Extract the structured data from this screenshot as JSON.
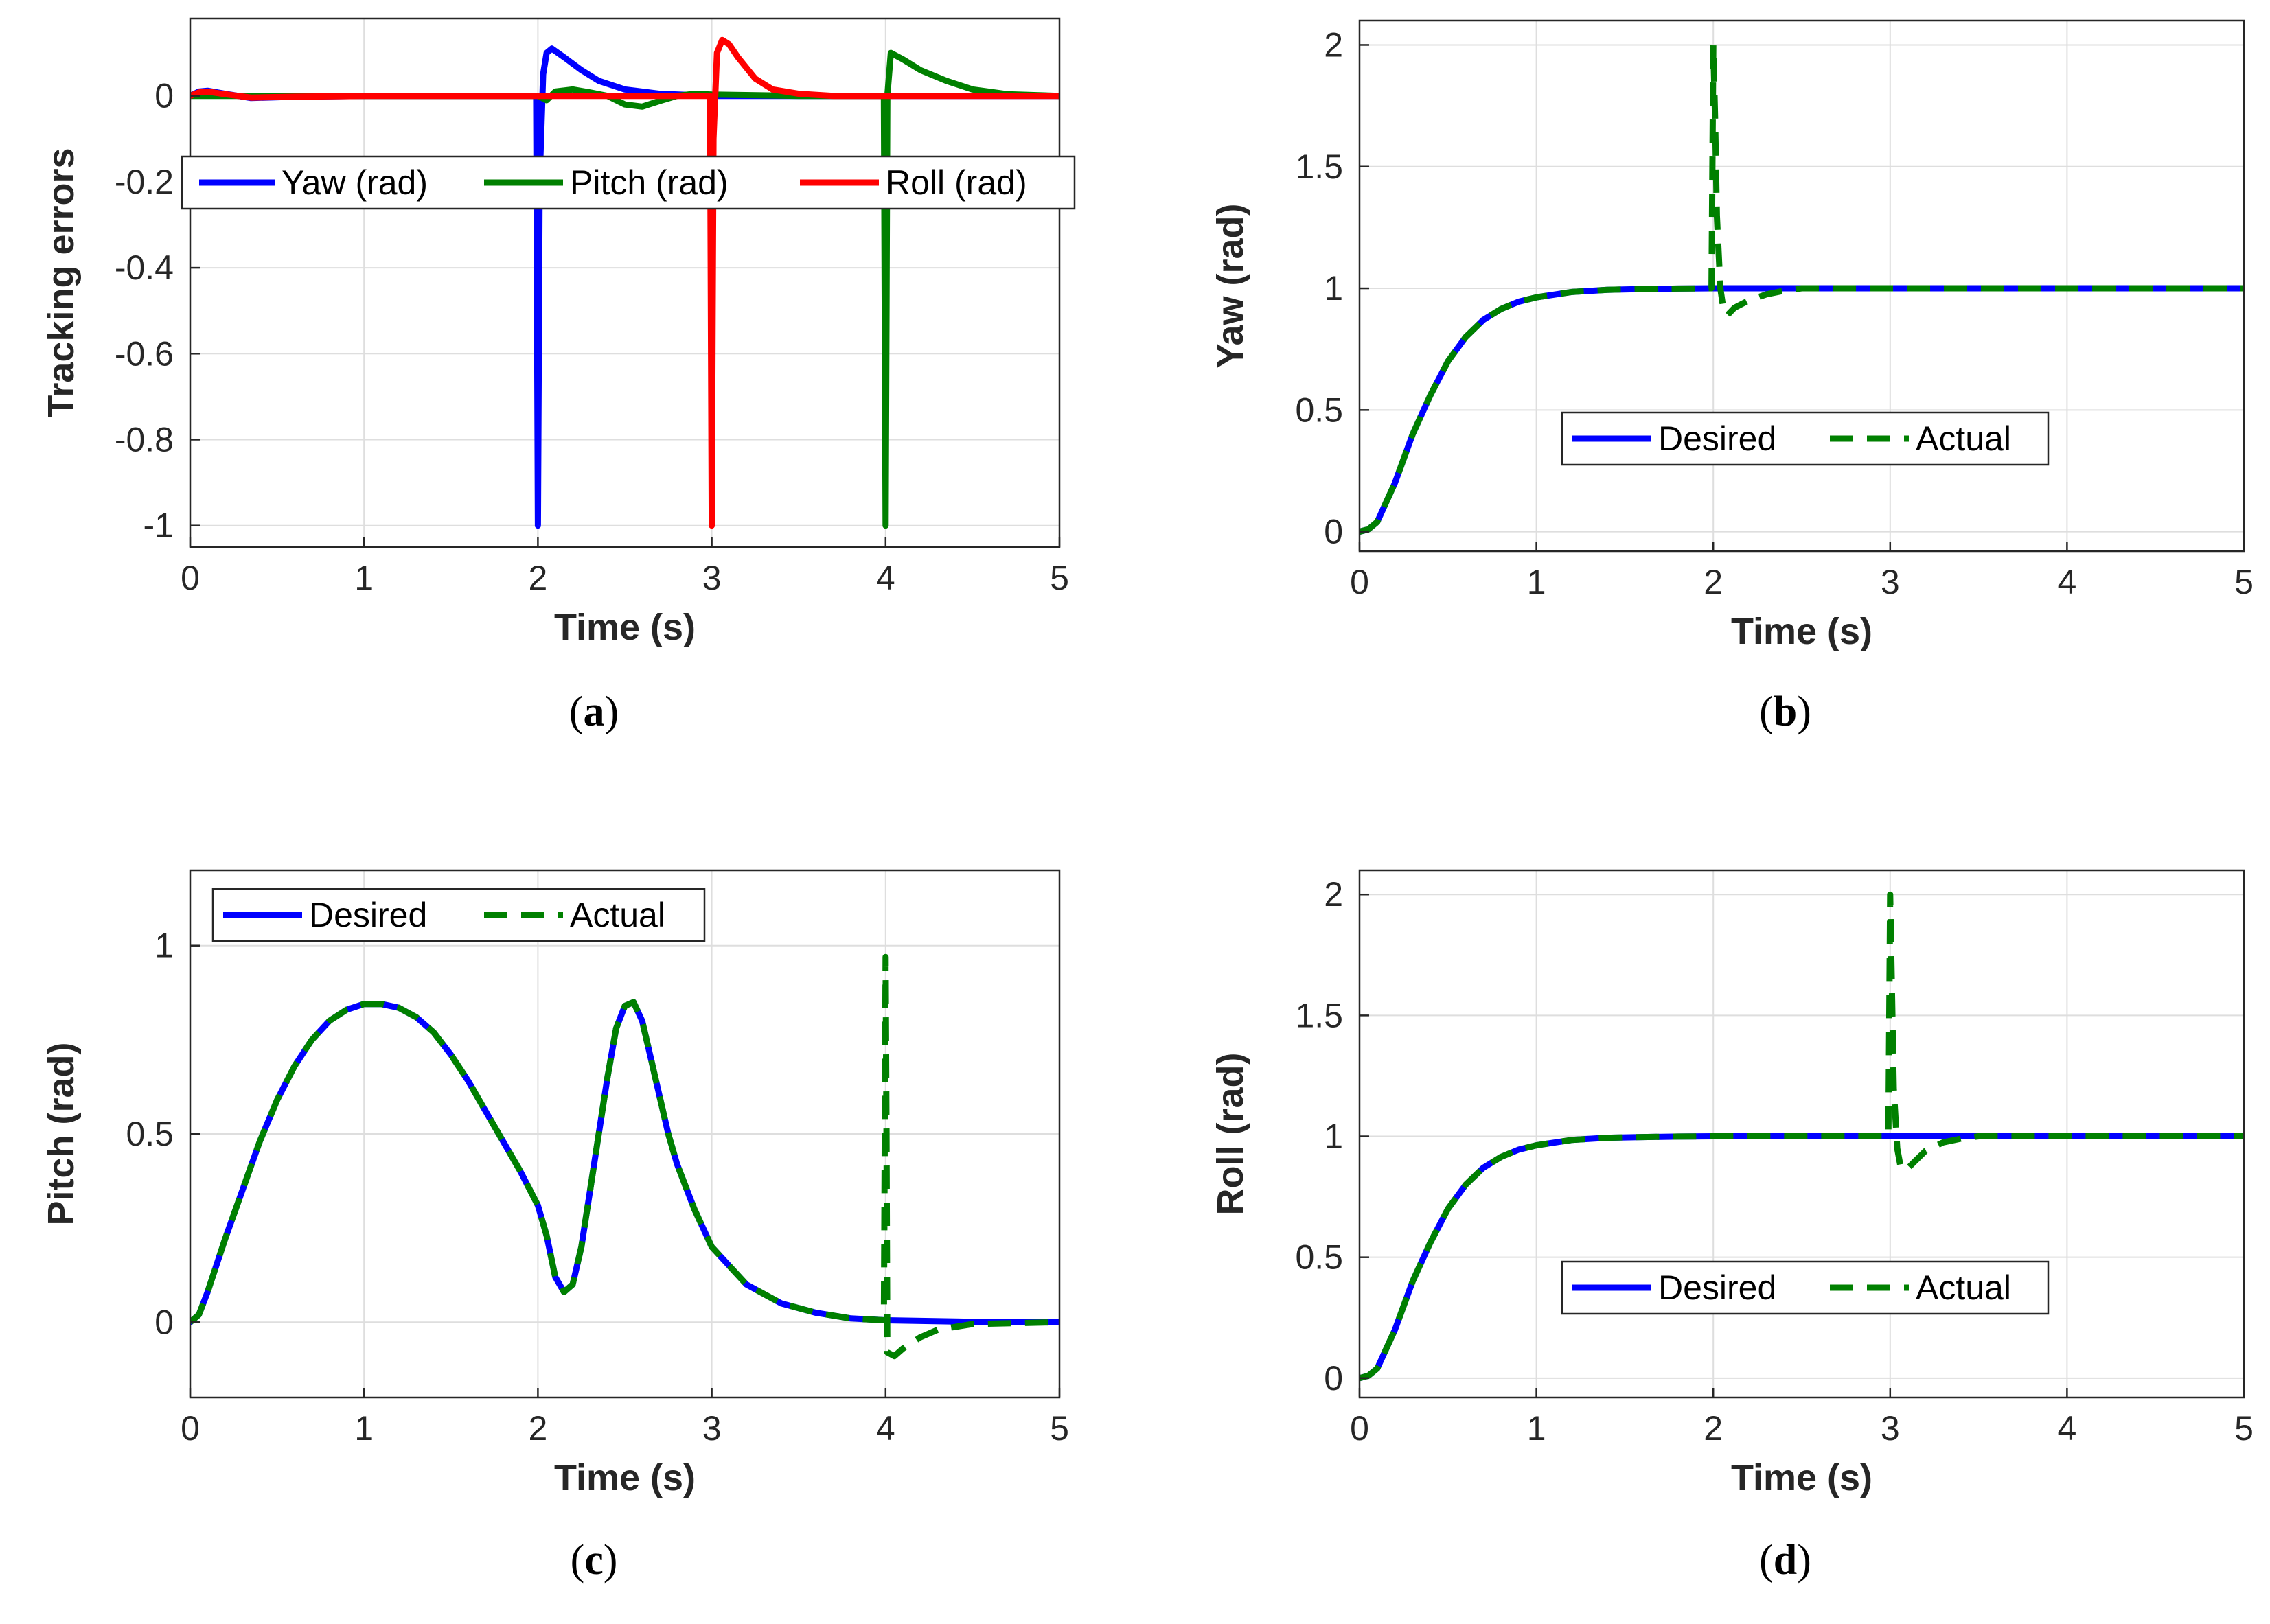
{
  "chart_data": [
    {
      "type": "line",
      "id": "a",
      "caption": "(a)",
      "caption_letter": "a",
      "xlabel": "Time (s)",
      "ylabel": "Tracking errors",
      "xlim": [
        0,
        5
      ],
      "ylim": [
        -1.05,
        0.18
      ],
      "xticks": [
        0,
        1,
        2,
        3,
        4,
        5
      ],
      "xtick_labels": [
        "0",
        "1",
        "2",
        "3",
        "4",
        "5"
      ],
      "yticks": [
        -1,
        -0.8,
        -0.6,
        -0.4,
        -0.2,
        0
      ],
      "ytick_labels": [
        "-1",
        "-0.8",
        "-0.6",
        "-0.4",
        "-0.2",
        "0"
      ],
      "grid": true,
      "legend": {
        "placement": "top, horizontal",
        "entries": [
          "Yaw (rad)",
          "Pitch (rad)",
          "Roll (rad)"
        ]
      },
      "series": [
        {
          "name": "Yaw (rad)",
          "color": "#0000ff",
          "style": "solid",
          "x": [
            0,
            0.05,
            0.1,
            0.2,
            0.35,
            0.6,
            1.0,
            1.5,
            1.99,
            2.0,
            2.005,
            2.01,
            2.03,
            2.05,
            2.08,
            2.15,
            2.25,
            2.35,
            2.5,
            2.7,
            3.0,
            3.5,
            4.0,
            4.5,
            5.0
          ],
          "y": [
            0,
            0.01,
            0.012,
            0.005,
            -0.005,
            -0.002,
            0,
            0,
            0,
            -1.0,
            -0.6,
            -0.2,
            0.05,
            0.1,
            0.11,
            0.09,
            0.06,
            0.035,
            0.015,
            0.005,
            0,
            0,
            0,
            0,
            0
          ]
        },
        {
          "name": "Pitch (rad)",
          "color": "#008000",
          "style": "solid",
          "x": [
            0,
            0.2,
            0.5,
            1.0,
            1.5,
            2.0,
            2.05,
            2.1,
            2.2,
            2.3,
            2.4,
            2.5,
            2.6,
            2.7,
            2.8,
            2.9,
            3.0,
            3.5,
            3.99,
            4.0,
            4.005,
            4.01,
            4.03,
            4.1,
            4.2,
            4.35,
            4.5,
            4.7,
            5.0
          ],
          "y": [
            0,
            0,
            0,
            0,
            0,
            0,
            -0.01,
            0.01,
            0.015,
            0.008,
            0.0,
            -0.02,
            -0.025,
            -0.012,
            0.0,
            0.005,
            0.003,
            0,
            0,
            -1.0,
            -0.5,
            0.0,
            0.1,
            0.085,
            0.06,
            0.035,
            0.015,
            0.004,
            0
          ]
        },
        {
          "name": "Roll (rad)",
          "color": "#ff0000",
          "style": "solid",
          "x": [
            0,
            0.05,
            0.1,
            0.2,
            0.35,
            0.6,
            1.0,
            2.0,
            2.99,
            3.0,
            3.005,
            3.01,
            3.03,
            3.06,
            3.1,
            3.15,
            3.25,
            3.35,
            3.5,
            3.7,
            4.0,
            5.0
          ],
          "y": [
            0,
            0.008,
            0.01,
            0.004,
            -0.004,
            -0.002,
            0,
            0,
            0,
            -1.0,
            -0.5,
            -0.1,
            0.1,
            0.13,
            0.12,
            0.09,
            0.04,
            0.015,
            0.005,
            0,
            0,
            0
          ]
        }
      ]
    },
    {
      "type": "line",
      "id": "b",
      "caption": "(b)",
      "caption_letter": "b",
      "xlabel": "Time (s)",
      "ylabel": "Yaw (rad)",
      "xlim": [
        0,
        5
      ],
      "ylim": [
        -0.08,
        2.1
      ],
      "xticks": [
        0,
        1,
        2,
        3,
        4,
        5
      ],
      "xtick_labels": [
        "0",
        "1",
        "2",
        "3",
        "4",
        "5"
      ],
      "yticks": [
        0,
        0.5,
        1,
        1.5,
        2
      ],
      "ytick_labels": [
        "0",
        "0.5",
        "1",
        "1.5",
        "2"
      ],
      "grid": true,
      "legend": {
        "placement": "center-bottom, horizontal",
        "entries": [
          "Desired",
          "Actual"
        ]
      },
      "series": [
        {
          "name": "Desired",
          "color": "#0000ff",
          "style": "solid",
          "x": [
            0,
            0.05,
            0.1,
            0.2,
            0.3,
            0.4,
            0.5,
            0.6,
            0.7,
            0.8,
            0.9,
            1.0,
            1.2,
            1.4,
            1.6,
            1.8,
            2.0,
            2.5,
            3.0,
            3.5,
            4.0,
            4.5,
            5.0
          ],
          "y": [
            0,
            0.01,
            0.04,
            0.2,
            0.4,
            0.56,
            0.7,
            0.8,
            0.87,
            0.915,
            0.945,
            0.963,
            0.985,
            0.994,
            0.997,
            0.999,
            1.0,
            1.0,
            1.0,
            1.0,
            1.0,
            1.0,
            1.0
          ]
        },
        {
          "name": "Actual",
          "color": "#008000",
          "style": "dashed",
          "x": [
            0,
            0.05,
            0.1,
            0.2,
            0.3,
            0.4,
            0.5,
            0.6,
            0.7,
            0.8,
            0.9,
            1.0,
            1.2,
            1.4,
            1.6,
            1.8,
            1.99,
            2.0,
            2.01,
            2.02,
            2.04,
            2.06,
            2.08,
            2.12,
            2.2,
            2.3,
            2.4,
            2.5,
            3.0,
            3.5,
            4.0,
            4.5,
            5.0
          ],
          "y": [
            0,
            0.01,
            0.04,
            0.2,
            0.4,
            0.56,
            0.7,
            0.8,
            0.87,
            0.915,
            0.945,
            0.963,
            0.985,
            0.994,
            0.997,
            0.999,
            1.0,
            2.0,
            1.7,
            1.3,
            1.0,
            0.9,
            0.89,
            0.92,
            0.95,
            0.975,
            0.99,
            1.0,
            1.0,
            1.0,
            1.0,
            1.0,
            1.0
          ]
        }
      ]
    },
    {
      "type": "line",
      "id": "c",
      "caption": "(c)",
      "caption_letter": "c",
      "xlabel": "Time (s)",
      "ylabel": "Pitch (rad)",
      "xlim": [
        0,
        5
      ],
      "ylim": [
        -0.2,
        1.2
      ],
      "xticks": [
        0,
        1,
        2,
        3,
        4,
        5
      ],
      "xtick_labels": [
        "0",
        "1",
        "2",
        "3",
        "4",
        "5"
      ],
      "yticks": [
        0,
        0.5,
        1
      ],
      "ytick_labels": [
        "0",
        "0.5",
        "1"
      ],
      "grid": true,
      "legend": {
        "placement": "top-left, horizontal",
        "entries": [
          "Desired",
          "Actual"
        ]
      },
      "series": [
        {
          "name": "Desired",
          "color": "#0000ff",
          "style": "solid",
          "x": [
            0,
            0.05,
            0.1,
            0.2,
            0.3,
            0.4,
            0.5,
            0.6,
            0.7,
            0.8,
            0.9,
            1.0,
            1.1,
            1.2,
            1.3,
            1.4,
            1.5,
            1.6,
            1.7,
            1.8,
            1.9,
            2.0,
            2.05,
            2.1,
            2.15,
            2.2,
            2.25,
            2.3,
            2.35,
            2.4,
            2.45,
            2.5,
            2.55,
            2.6,
            2.65,
            2.7,
            2.75,
            2.8,
            2.9,
            3.0,
            3.2,
            3.4,
            3.6,
            3.8,
            4.0,
            4.5,
            5.0
          ],
          "y": [
            0,
            0.02,
            0.08,
            0.22,
            0.35,
            0.48,
            0.59,
            0.68,
            0.75,
            0.8,
            0.83,
            0.845,
            0.845,
            0.835,
            0.81,
            0.77,
            0.71,
            0.64,
            0.56,
            0.48,
            0.4,
            0.31,
            0.23,
            0.12,
            0.08,
            0.1,
            0.2,
            0.35,
            0.5,
            0.65,
            0.78,
            0.84,
            0.85,
            0.8,
            0.7,
            0.6,
            0.5,
            0.42,
            0.3,
            0.2,
            0.1,
            0.05,
            0.025,
            0.01,
            0.005,
            0.001,
            0
          ]
        },
        {
          "name": "Actual",
          "color": "#008000",
          "style": "dashed",
          "x": [
            0,
            0.05,
            0.1,
            0.2,
            0.3,
            0.4,
            0.5,
            0.6,
            0.7,
            0.8,
            0.9,
            1.0,
            1.1,
            1.2,
            1.3,
            1.4,
            1.5,
            1.6,
            1.7,
            1.8,
            1.9,
            2.0,
            2.05,
            2.1,
            2.15,
            2.2,
            2.25,
            2.3,
            2.35,
            2.4,
            2.45,
            2.5,
            2.55,
            2.6,
            2.65,
            2.7,
            2.75,
            2.8,
            2.9,
            3.0,
            3.2,
            3.4,
            3.6,
            3.8,
            3.99,
            4.0,
            4.005,
            4.01,
            4.05,
            4.1,
            4.2,
            4.3,
            4.5,
            5.0
          ],
          "y": [
            0,
            0.02,
            0.08,
            0.22,
            0.35,
            0.48,
            0.59,
            0.68,
            0.75,
            0.8,
            0.83,
            0.845,
            0.845,
            0.835,
            0.81,
            0.77,
            0.71,
            0.64,
            0.56,
            0.48,
            0.4,
            0.31,
            0.23,
            0.12,
            0.08,
            0.1,
            0.2,
            0.35,
            0.5,
            0.65,
            0.78,
            0.84,
            0.85,
            0.8,
            0.7,
            0.6,
            0.5,
            0.42,
            0.3,
            0.2,
            0.1,
            0.05,
            0.025,
            0.01,
            0.005,
            0.97,
            0.5,
            -0.08,
            -0.09,
            -0.07,
            -0.04,
            -0.02,
            -0.005,
            0
          ]
        }
      ]
    },
    {
      "type": "line",
      "id": "d",
      "caption": "(d)",
      "caption_letter": "d",
      "xlabel": "Time (s)",
      "ylabel": "Roll (rad)",
      "xlim": [
        0,
        5
      ],
      "ylim": [
        -0.08,
        2.1
      ],
      "xticks": [
        0,
        1,
        2,
        3,
        4,
        5
      ],
      "xtick_labels": [
        "0",
        "1",
        "2",
        "3",
        "4",
        "5"
      ],
      "yticks": [
        0,
        0.5,
        1,
        1.5,
        2
      ],
      "ytick_labels": [
        "0",
        "0.5",
        "1",
        "1.5",
        "2"
      ],
      "grid": true,
      "legend": {
        "placement": "center-bottom, horizontal",
        "entries": [
          "Desired",
          "Actual"
        ]
      },
      "series": [
        {
          "name": "Desired",
          "color": "#0000ff",
          "style": "solid",
          "x": [
            0,
            0.05,
            0.1,
            0.2,
            0.3,
            0.4,
            0.5,
            0.6,
            0.7,
            0.8,
            0.9,
            1.0,
            1.2,
            1.4,
            1.6,
            1.8,
            2.0,
            2.5,
            3.0,
            3.5,
            4.0,
            4.5,
            5.0
          ],
          "y": [
            0,
            0.01,
            0.04,
            0.2,
            0.4,
            0.56,
            0.7,
            0.8,
            0.87,
            0.915,
            0.945,
            0.963,
            0.985,
            0.994,
            0.997,
            0.999,
            1.0,
            1.0,
            1.0,
            1.0,
            1.0,
            1.0,
            1.0
          ]
        },
        {
          "name": "Actual",
          "color": "#008000",
          "style": "dashed",
          "x": [
            0,
            0.05,
            0.1,
            0.2,
            0.3,
            0.4,
            0.5,
            0.6,
            0.7,
            0.8,
            0.9,
            1.0,
            1.2,
            1.4,
            1.6,
            1.8,
            2.0,
            2.5,
            2.99,
            3.0,
            3.01,
            3.02,
            3.04,
            3.06,
            3.09,
            3.13,
            3.2,
            3.3,
            3.4,
            3.5,
            4.0,
            4.5,
            5.0
          ],
          "y": [
            0,
            0.01,
            0.04,
            0.2,
            0.4,
            0.56,
            0.7,
            0.8,
            0.87,
            0.915,
            0.945,
            0.963,
            0.985,
            0.994,
            0.997,
            0.999,
            1.0,
            1.0,
            1.0,
            2.0,
            1.6,
            1.2,
            0.95,
            0.87,
            0.86,
            0.89,
            0.94,
            0.975,
            0.99,
            1.0,
            1.0,
            1.0,
            1.0
          ]
        }
      ]
    }
  ]
}
